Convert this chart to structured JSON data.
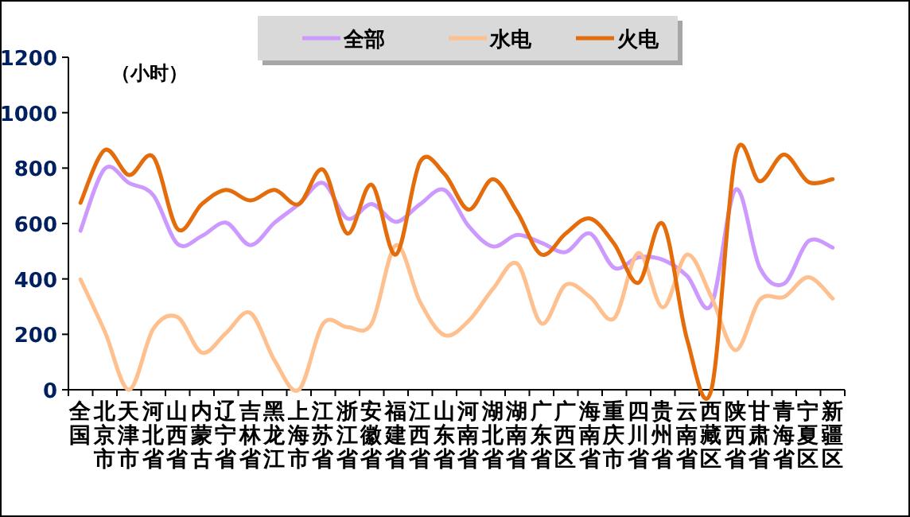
{
  "chart_data": {
    "type": "line",
    "annotations": [
      "（小时）"
    ],
    "categories": [
      "全国",
      "北京市",
      "天津市",
      "河北省",
      "山西省",
      "内蒙古",
      "辽宁省",
      "吉林省",
      "黑龙江",
      "上海市",
      "江苏省",
      "浙江省",
      "安徽省",
      "福建省",
      "江西省",
      "山东省",
      "河南省",
      "湖北省",
      "湖南省",
      "广东省",
      "广西区",
      "海南省",
      "重庆市",
      "四川省",
      "贵州省",
      "云南省",
      "西藏区",
      "陕西省",
      "甘肃省",
      "青海省",
      "宁夏区",
      "新疆区"
    ],
    "ylim": [
      0,
      1200
    ],
    "yticks": [
      0,
      200,
      400,
      600,
      800,
      1000,
      1200
    ],
    "legend": "top",
    "marker": "none",
    "series": [
      {
        "name": "全部",
        "color": "#cc99ff",
        "values": [
          574,
          798,
          746,
          702,
          526,
          555,
          603,
          522,
          603,
          670,
          746,
          618,
          670,
          606,
          670,
          721,
          590,
          517,
          559,
          530,
          497,
          564,
          440,
          478,
          469,
          411,
          306,
          723,
          440,
          383,
          536,
          513
        ]
      },
      {
        "name": "水电",
        "color": "#ffc08f",
        "values": [
          398,
          210,
          0,
          220,
          262,
          134,
          205,
          277,
          105,
          0,
          239,
          226,
          239,
          522,
          316,
          197,
          249,
          364,
          455,
          239,
          379,
          335,
          258,
          494,
          297,
          488,
          335,
          143,
          325,
          335,
          406,
          329
        ]
      },
      {
        "name": "火电",
        "color": "#e46c0a",
        "values": [
          675,
          865,
          775,
          840,
          580,
          670,
          721,
          683,
          721,
          670,
          794,
          564,
          740,
          488,
          823,
          779,
          650,
          760,
          641,
          488,
          564,
          618,
          526,
          386,
          599,
          182,
          0,
          846,
          752,
          849,
          750,
          760
        ]
      }
    ]
  }
}
